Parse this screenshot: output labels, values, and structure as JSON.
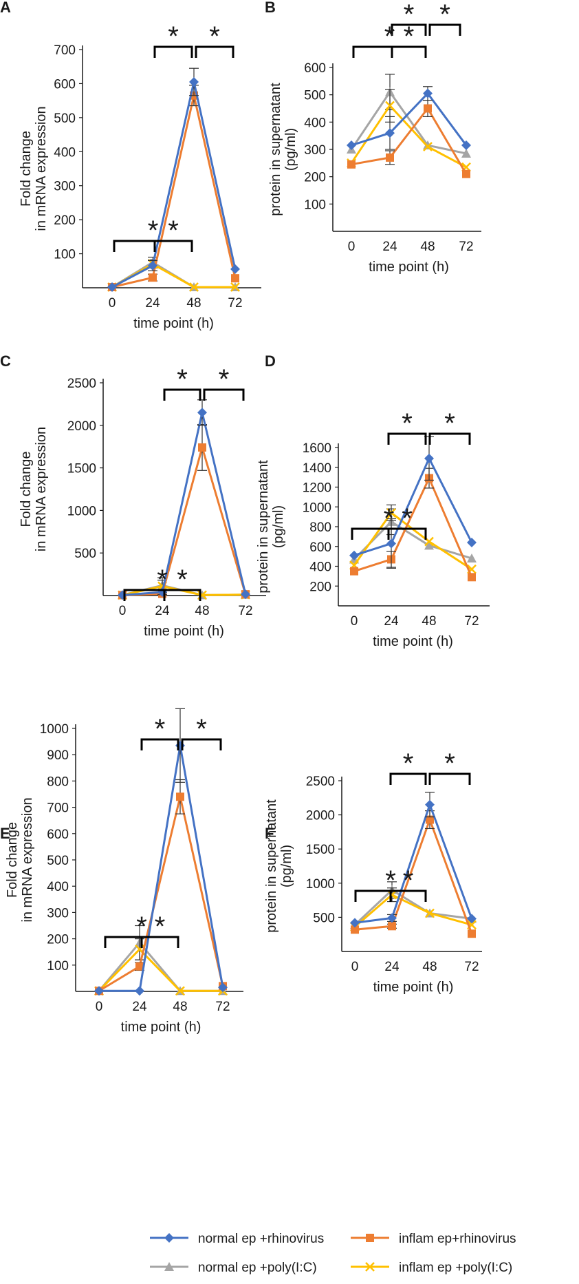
{
  "chart_data": [
    {
      "panel": "A",
      "type": "line",
      "xlabel": "time point (h)",
      "ylabel": [
        "Fold change",
        "in mRNA expression"
      ],
      "categories": [
        "0",
        "24",
        "48",
        "72"
      ],
      "ylim": [
        0,
        700
      ],
      "yticks": [
        100,
        200,
        300,
        400,
        500,
        600,
        700
      ],
      "series": [
        {
          "name": "normal ep +rhinovirus",
          "values": [
            2,
            65,
            605,
            55
          ],
          "errors": [
            0,
            15,
            40,
            0
          ]
        },
        {
          "name": "inflam ep+rhinovirus",
          "values": [
            2,
            30,
            565,
            28
          ],
          "errors": [
            0,
            10,
            30,
            0
          ]
        },
        {
          "name": "normal ep +poly(I:C)",
          "values": [
            2,
            75,
            2,
            2
          ],
          "errors": [
            0,
            15,
            0,
            0
          ]
        },
        {
          "name": "inflam ep +poly(I:C)",
          "values": [
            2,
            70,
            2,
            2
          ],
          "errors": [
            0,
            12,
            0,
            0
          ]
        }
      ],
      "significance": [
        {
          "label": "*",
          "span": [
            "24",
            "48"
          ]
        },
        {
          "label": "*",
          "span": [
            "48",
            "72"
          ]
        },
        {
          "label": "*",
          "span": [
            "0",
            "24"
          ]
        },
        {
          "label": "*",
          "span": [
            "24",
            "48"
          ]
        }
      ]
    },
    {
      "panel": "B",
      "type": "line",
      "xlabel": "time point (h)",
      "ylabel": [
        "protein in supernatant",
        "(pg/ml)"
      ],
      "categories": [
        "0",
        "24",
        "48",
        "72"
      ],
      "ylim": [
        0,
        600
      ],
      "yticks": [
        100,
        200,
        300,
        400,
        500,
        600
      ],
      "series": [
        {
          "name": "normal ep +rhinovirus",
          "values": [
            315,
            360,
            505,
            315
          ],
          "errors": [
            0,
            60,
            25,
            0
          ]
        },
        {
          "name": "inflam ep+rhinovirus",
          "values": [
            245,
            270,
            450,
            210
          ],
          "errors": [
            0,
            25,
            30,
            0
          ]
        },
        {
          "name": "normal ep +poly(I:C)",
          "values": [
            300,
            510,
            315,
            285
          ],
          "errors": [
            0,
            65,
            0,
            0
          ]
        },
        {
          "name": "inflam ep +poly(I:C)",
          "values": [
            250,
            460,
            310,
            235
          ],
          "errors": [
            0,
            60,
            0,
            0
          ]
        }
      ],
      "significance": [
        {
          "label": "*",
          "span": [
            "24",
            "48"
          ]
        },
        {
          "label": "*",
          "span": [
            "48",
            "72"
          ]
        },
        {
          "label": "*",
          "span": [
            "0",
            "24"
          ]
        },
        {
          "label": "*",
          "span": [
            "24",
            "48"
          ]
        }
      ]
    },
    {
      "panel": "C",
      "type": "line",
      "xlabel": "time point (h)",
      "ylabel": [
        "Fold change",
        "in mRNA expression"
      ],
      "categories": [
        "0",
        "24",
        "48",
        "72"
      ],
      "ylim": [
        0,
        2500
      ],
      "yticks": [
        500,
        1000,
        1500,
        2000,
        2500
      ],
      "series": [
        {
          "name": "normal ep +rhinovirus",
          "values": [
            5,
            40,
            2150,
            15
          ],
          "errors": [
            0,
            30,
            150,
            0
          ]
        },
        {
          "name": "inflam ep+rhinovirus",
          "values": [
            5,
            20,
            1740,
            15
          ],
          "errors": [
            0,
            20,
            270,
            0
          ]
        },
        {
          "name": "normal ep +poly(I:C)",
          "values": [
            5,
            120,
            5,
            10
          ],
          "errors": [
            0,
            90,
            0,
            0
          ]
        },
        {
          "name": "inflam ep +poly(I:C)",
          "values": [
            5,
            110,
            5,
            10
          ],
          "errors": [
            0,
            70,
            0,
            0
          ]
        }
      ],
      "significance": [
        {
          "label": "*",
          "span": [
            "24",
            "48"
          ]
        },
        {
          "label": "*",
          "span": [
            "48",
            "72"
          ]
        },
        {
          "label": "*",
          "span": [
            "0",
            "24"
          ]
        },
        {
          "label": "*",
          "span": [
            "24",
            "48"
          ]
        }
      ]
    },
    {
      "panel": "D",
      "type": "line",
      "xlabel": "time point (h)",
      "ylabel": [
        "protein in supernatant",
        "(pg/ml)"
      ],
      "categories": [
        "0",
        "24",
        "48",
        "72"
      ],
      "ylim": [
        0,
        1600
      ],
      "yticks": [
        200,
        400,
        600,
        800,
        1000,
        1200,
        1400,
        1600
      ],
      "series": [
        {
          "name": "normal ep +rhinovirus",
          "values": [
            510,
            630,
            1490,
            640
          ],
          "errors": [
            0,
            250,
            220,
            0
          ]
        },
        {
          "name": "inflam ep+rhinovirus",
          "values": [
            350,
            470,
            1290,
            290
          ],
          "errors": [
            0,
            80,
            100,
            0
          ]
        },
        {
          "name": "normal ep +poly(I:C)",
          "values": [
            470,
            850,
            610,
            480
          ],
          "errors": [
            0,
            130,
            0,
            0
          ]
        },
        {
          "name": "inflam ep +poly(I:C)",
          "values": [
            410,
            940,
            650,
            370
          ],
          "errors": [
            0,
            80,
            0,
            0
          ]
        }
      ],
      "significance": [
        {
          "label": "*",
          "span": [
            "24",
            "48"
          ]
        },
        {
          "label": "*",
          "span": [
            "48",
            "72"
          ]
        },
        {
          "label": "*",
          "span": [
            "0",
            "24"
          ]
        },
        {
          "label": "*",
          "span": [
            "24",
            "48"
          ]
        }
      ]
    },
    {
      "panel": "E",
      "type": "line",
      "xlabel": "time point (h)",
      "ylabel": [
        "Fold change",
        "in mRNA expression"
      ],
      "categories": [
        "0",
        "24",
        "48",
        "72"
      ],
      "ylim": [
        0,
        1000
      ],
      "yticks": [
        100,
        200,
        300,
        400,
        500,
        600,
        700,
        800,
        900,
        1000
      ],
      "series": [
        {
          "name": "normal ep +rhinovirus",
          "values": [
            2,
            2,
            935,
            15
          ],
          "errors": [
            0,
            0,
            140,
            0
          ]
        },
        {
          "name": "inflam ep+rhinovirus",
          "values": [
            2,
            95,
            740,
            20
          ],
          "errors": [
            0,
            15,
            65,
            0
          ]
        },
        {
          "name": "normal ep +poly(I:C)",
          "values": [
            2,
            185,
            2,
            2
          ],
          "errors": [
            0,
            65,
            0,
            0
          ]
        },
        {
          "name": "inflam ep +poly(I:C)",
          "values": [
            2,
            160,
            2,
            2
          ],
          "errors": [
            0,
            40,
            0,
            0
          ]
        }
      ],
      "significance": [
        {
          "label": "*",
          "span": [
            "24",
            "48"
          ]
        },
        {
          "label": "*",
          "span": [
            "48",
            "72"
          ]
        },
        {
          "label": "*",
          "span": [
            "0",
            "24"
          ]
        },
        {
          "label": "*",
          "span": [
            "24",
            "48"
          ]
        }
      ]
    },
    {
      "panel": "F",
      "type": "line",
      "xlabel": "time point (h)",
      "ylabel": [
        "protein in supernatant",
        "(pg/ml)"
      ],
      "categories": [
        "0",
        "24",
        "48",
        "72"
      ],
      "ylim": [
        0,
        2500
      ],
      "yticks": [
        500,
        1000,
        1500,
        2000,
        2500
      ],
      "series": [
        {
          "name": "normal ep +rhinovirus",
          "values": [
            420,
            490,
            2150,
            480
          ],
          "errors": [
            0,
            50,
            180,
            0
          ]
        },
        {
          "name": "inflam ep+rhinovirus",
          "values": [
            320,
            370,
            1930,
            260
          ],
          "errors": [
            0,
            30,
            130,
            0
          ]
        },
        {
          "name": "normal ep +poly(I:C)",
          "values": [
            390,
            900,
            560,
            480
          ],
          "errors": [
            0,
            120,
            0,
            0
          ]
        },
        {
          "name": "inflam ep +poly(I:C)",
          "values": [
            360,
            830,
            560,
            390
          ],
          "errors": [
            0,
            100,
            0,
            0
          ]
        }
      ],
      "significance": [
        {
          "label": "*",
          "span": [
            "24",
            "48"
          ]
        },
        {
          "label": "*",
          "span": [
            "48",
            "72"
          ]
        },
        {
          "label": "*",
          "span": [
            "0",
            "24"
          ]
        },
        {
          "label": "*",
          "span": [
            "24",
            "48"
          ]
        }
      ]
    }
  ],
  "legend": [
    {
      "name": "normal ep +rhinovirus",
      "color": "#4472C4",
      "marker": "diamond"
    },
    {
      "name": "inflam ep+rhinovirus",
      "color": "#ED7D31",
      "marker": "square"
    },
    {
      "name": "normal ep +poly(I:C)",
      "color": "#A5A5A5",
      "marker": "triangle"
    },
    {
      "name": "inflam ep +poly(I:C)",
      "color": "#FFC000",
      "marker": "x"
    }
  ],
  "colors": {
    "axis": "#1a1a1a",
    "errorbar": "#333333",
    "bracket": "#000000"
  }
}
